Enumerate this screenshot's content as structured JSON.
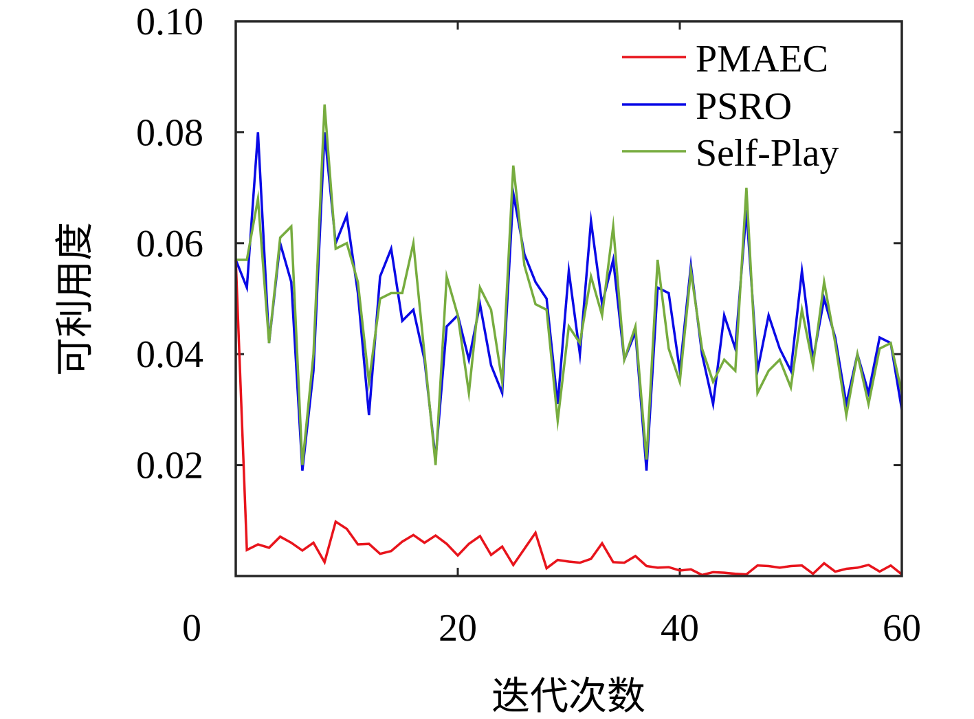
{
  "chart_data": {
    "type": "line",
    "title": "",
    "xlabel": "迭代次数",
    "ylabel": "可利用度",
    "xlim": [
      0,
      60
    ],
    "ylim": [
      0,
      0.1
    ],
    "x_ticks": [
      0,
      20,
      40,
      60
    ],
    "x_tick_labels": [
      "0",
      "20",
      "40",
      "60"
    ],
    "y_ticks": [
      0.02,
      0.04,
      0.06,
      0.08,
      0.1
    ],
    "y_tick_labels": [
      "0.02",
      "0.04",
      "0.06",
      "0.08",
      "0.10"
    ],
    "grid": false,
    "legend_position": "top-right",
    "x": [
      0,
      1,
      2,
      3,
      4,
      5,
      6,
      7,
      8,
      9,
      10,
      11,
      12,
      13,
      14,
      15,
      16,
      17,
      18,
      19,
      20,
      21,
      22,
      23,
      24,
      25,
      26,
      27,
      28,
      29,
      30,
      31,
      32,
      33,
      34,
      35,
      36,
      37,
      38,
      39,
      40,
      41,
      42,
      43,
      44,
      45,
      46,
      47,
      48,
      49,
      50,
      51,
      52,
      53,
      54,
      55,
      56,
      57,
      58,
      59,
      60
    ],
    "series": [
      {
        "name": "PMAEC",
        "color": "#e8141c",
        "values": [
          0.057,
          0.0047,
          0.0057,
          0.0051,
          0.0071,
          0.006,
          0.0046,
          0.006,
          0.0025,
          0.0098,
          0.0085,
          0.0057,
          0.0058,
          0.004,
          0.0045,
          0.0062,
          0.0074,
          0.006,
          0.0073,
          0.0058,
          0.0037,
          0.0058,
          0.0072,
          0.0038,
          0.0053,
          0.002,
          0.0049,
          0.0078,
          0.0014,
          0.0029,
          0.0026,
          0.0024,
          0.0031,
          0.0059,
          0.0025,
          0.0024,
          0.0036,
          0.0018,
          0.0015,
          0.0016,
          0.001,
          0.0012,
          0.0002,
          0.0007,
          0.0006,
          0.0004,
          0.0003,
          0.0019,
          0.0018,
          0.0015,
          0.0018,
          0.0019,
          0.0004,
          0.0023,
          0.0008,
          0.0013,
          0.0015,
          0.002,
          0.0008,
          0.0019,
          0.0003
        ]
      },
      {
        "name": "PSRO",
        "color": "#0a0ae6",
        "values": [
          0.057,
          0.052,
          0.08,
          0.042,
          0.06,
          0.053,
          0.019,
          0.037,
          0.08,
          0.06,
          0.065,
          0.051,
          0.029,
          0.054,
          0.059,
          0.046,
          0.048,
          0.039,
          0.021,
          0.045,
          0.047,
          0.039,
          0.049,
          0.038,
          0.033,
          0.069,
          0.058,
          0.053,
          0.05,
          0.031,
          0.055,
          0.04,
          0.064,
          0.049,
          0.057,
          0.039,
          0.044,
          0.019,
          0.052,
          0.051,
          0.037,
          0.056,
          0.04,
          0.031,
          0.047,
          0.041,
          0.066,
          0.037,
          0.047,
          0.041,
          0.037,
          0.055,
          0.039,
          0.05,
          0.043,
          0.031,
          0.04,
          0.033,
          0.043,
          0.042,
          0.03
        ]
      },
      {
        "name": "Self-Play",
        "color": "#77ac3f",
        "values": [
          0.057,
          0.057,
          0.068,
          0.042,
          0.061,
          0.063,
          0.02,
          0.04,
          0.085,
          0.059,
          0.06,
          0.053,
          0.035,
          0.05,
          0.051,
          0.051,
          0.06,
          0.04,
          0.02,
          0.054,
          0.047,
          0.033,
          0.052,
          0.048,
          0.035,
          0.074,
          0.056,
          0.049,
          0.048,
          0.028,
          0.045,
          0.042,
          0.054,
          0.047,
          0.063,
          0.039,
          0.045,
          0.021,
          0.057,
          0.041,
          0.035,
          0.055,
          0.041,
          0.035,
          0.039,
          0.037,
          0.07,
          0.033,
          0.037,
          0.039,
          0.034,
          0.048,
          0.038,
          0.053,
          0.042,
          0.029,
          0.04,
          0.031,
          0.041,
          0.042,
          0.033
        ]
      }
    ]
  }
}
